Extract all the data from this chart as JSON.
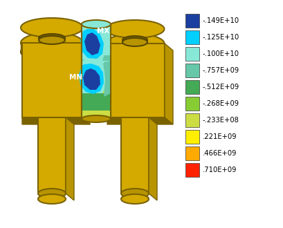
{
  "legend_labels": [
    "-.149E+10",
    "-.125E+10",
    "-.100E+10",
    "-.757E+09",
    "-.512E+09",
    "-.268E+09",
    "-.233E+08",
    ".221E+09",
    ".466E+09",
    ".710E+09"
  ],
  "legend_colors": [
    "#1b3fa0",
    "#00cfff",
    "#88e8d8",
    "#66c8a8",
    "#44aa55",
    "#88cc33",
    "#ccdd44",
    "#ffee00",
    "#ffaa00",
    "#ff2200"
  ],
  "bg_color": "#ffffff",
  "gold_light": "#d4aa00",
  "gold_mid": "#b89500",
  "gold_dark": "#7a6200",
  "gold_shadow": "#5a4800",
  "mx_label": "MX",
  "mn_label": "MN"
}
